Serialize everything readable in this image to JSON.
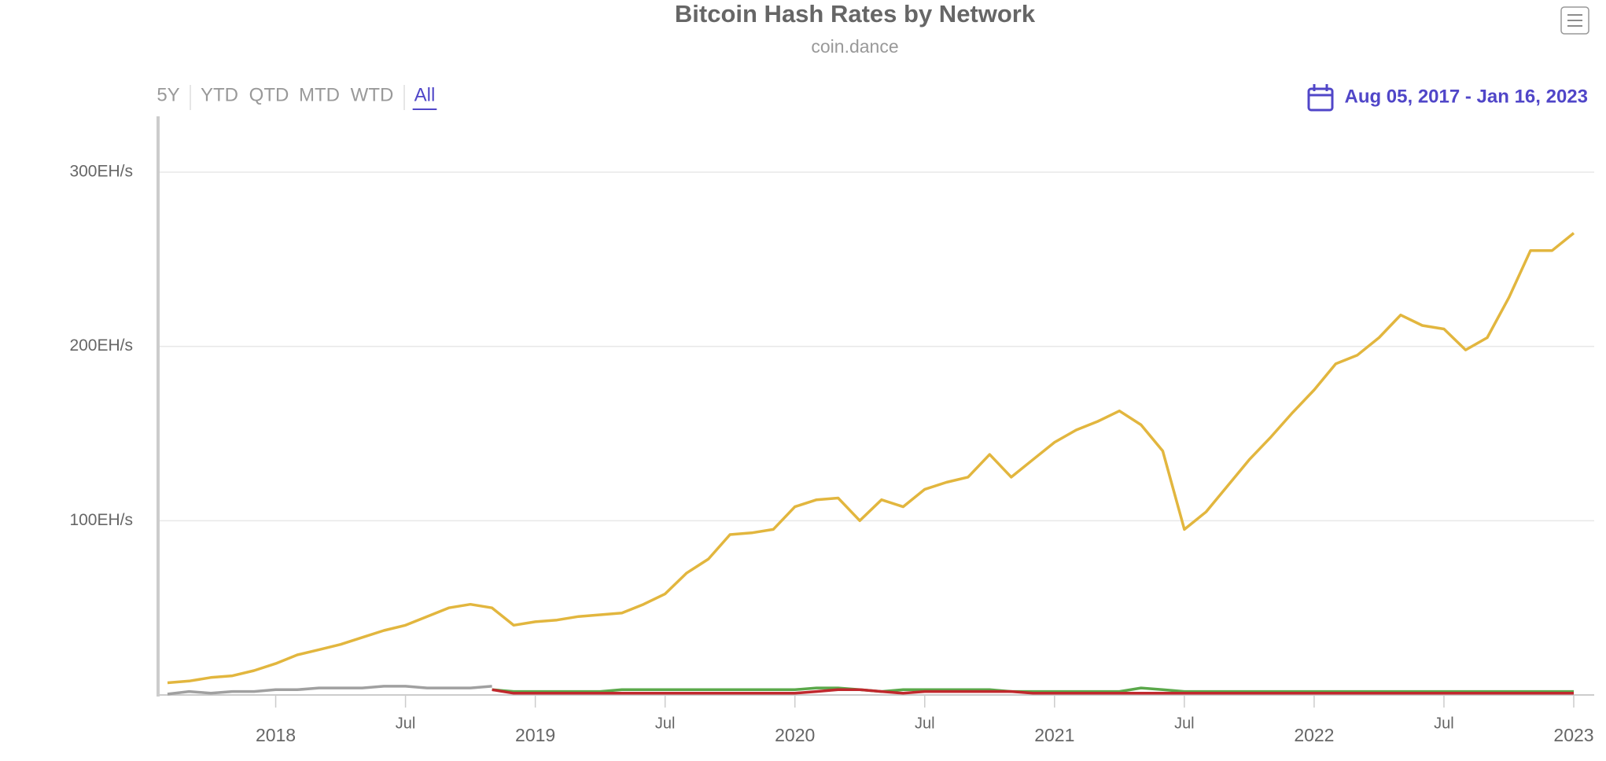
{
  "range_buttons": [
    "5Y",
    "YTD",
    "QTD",
    "MTD",
    "WTD",
    "All"
  ],
  "active_range": 5,
  "date_range": "Aug 05, 2017 - Jan 16, 2023",
  "chart_data": {
    "type": "line",
    "title": "Bitcoin Hash Rates by Network",
    "subtitle": "coin.dance",
    "x": [
      "2017-08",
      "2017-09",
      "2017-10",
      "2017-11",
      "2017-12",
      "2018-01",
      "2018-02",
      "2018-03",
      "2018-04",
      "2018-05",
      "2018-06",
      "2018-07",
      "2018-08",
      "2018-09",
      "2018-10",
      "2018-11",
      "2018-12",
      "2019-01",
      "2019-02",
      "2019-03",
      "2019-04",
      "2019-05",
      "2019-06",
      "2019-07",
      "2019-08",
      "2019-09",
      "2019-10",
      "2019-11",
      "2019-12",
      "2020-01",
      "2020-02",
      "2020-03",
      "2020-04",
      "2020-05",
      "2020-06",
      "2020-07",
      "2020-08",
      "2020-09",
      "2020-10",
      "2020-11",
      "2020-12",
      "2021-01",
      "2021-02",
      "2021-03",
      "2021-04",
      "2021-05",
      "2021-06",
      "2021-07",
      "2021-08",
      "2021-09",
      "2021-10",
      "2021-11",
      "2021-12",
      "2022-01",
      "2022-02",
      "2022-03",
      "2022-04",
      "2022-05",
      "2022-06",
      "2022-07",
      "2022-08",
      "2022-09",
      "2022-10",
      "2022-11",
      "2022-12",
      "2023-01"
    ],
    "series": [
      {
        "color": "#e2b63e",
        "values": [
          7,
          8,
          10,
          11,
          14,
          18,
          23,
          26,
          29,
          33,
          37,
          40,
          45,
          50,
          52,
          50,
          40,
          42,
          43,
          45,
          46,
          47,
          52,
          58,
          70,
          78,
          92,
          93,
          95,
          108,
          112,
          113,
          100,
          112,
          108,
          118,
          122,
          125,
          138,
          125,
          135,
          145,
          152,
          157,
          163,
          155,
          140,
          95,
          105,
          120,
          135,
          148,
          162,
          175,
          190,
          195,
          205,
          218,
          212,
          210,
          198,
          205,
          228,
          255,
          255,
          265
        ]
      },
      {
        "color": "#a0a0a0",
        "values": [
          0.5,
          2,
          1,
          2,
          2,
          3,
          3,
          4,
          4,
          4,
          5,
          5,
          4,
          4,
          4,
          5,
          null,
          null,
          null,
          null,
          null,
          null,
          null,
          null,
          null,
          null,
          null,
          null,
          null,
          null,
          null,
          null,
          null,
          null,
          null,
          null,
          null,
          null,
          null,
          null,
          null,
          null,
          null,
          null,
          null,
          null,
          null,
          null,
          null,
          null,
          null,
          null,
          null,
          null,
          null,
          null,
          null,
          null,
          null,
          null,
          null,
          null,
          null,
          null,
          null,
          null
        ]
      },
      {
        "color": "#5aa84a",
        "values": [
          null,
          null,
          null,
          null,
          null,
          null,
          null,
          null,
          null,
          null,
          null,
          null,
          null,
          null,
          null,
          3,
          2,
          2,
          2,
          2,
          2,
          3,
          3,
          3,
          3,
          3,
          3,
          3,
          3,
          3,
          4,
          4,
          3,
          2,
          3,
          3,
          3,
          3,
          3,
          2,
          2,
          2,
          2,
          2,
          2,
          4,
          3,
          2,
          2,
          2,
          2,
          2,
          2,
          2,
          2,
          2,
          2,
          2,
          2,
          2,
          2,
          2,
          2,
          2,
          2,
          2
        ]
      },
      {
        "color": "#c0282d",
        "values": [
          null,
          null,
          null,
          null,
          null,
          null,
          null,
          null,
          null,
          null,
          null,
          null,
          null,
          null,
          null,
          3,
          1,
          1,
          1,
          1,
          1,
          1,
          1,
          1,
          1,
          1,
          1,
          1,
          1,
          1,
          2,
          3,
          3,
          2,
          1,
          2,
          2,
          2,
          2,
          2,
          1,
          1,
          1,
          1,
          1,
          1,
          1,
          1,
          1,
          1,
          1,
          1,
          1,
          1,
          1,
          1,
          1,
          1,
          1,
          1,
          1,
          1,
          1,
          1,
          1,
          1
        ]
      }
    ],
    "xlim": [
      "2017-08",
      "2023-01"
    ],
    "xticks": [
      {
        "value": "2018-01",
        "label": "2018"
      },
      {
        "value": "2018-07",
        "label": "Jul"
      },
      {
        "value": "2019-01",
        "label": "2019"
      },
      {
        "value": "2019-07",
        "label": "Jul"
      },
      {
        "value": "2020-01",
        "label": "2020"
      },
      {
        "value": "2020-07",
        "label": "Jul"
      },
      {
        "value": "2021-01",
        "label": "2021"
      },
      {
        "value": "2021-07",
        "label": "Jul"
      },
      {
        "value": "2022-01",
        "label": "2022"
      },
      {
        "value": "2022-07",
        "label": "Jul"
      },
      {
        "value": "2023-01",
        "label": "2023"
      }
    ],
    "ylim": [
      0,
      332
    ],
    "yticks": [
      {
        "value": 100,
        "label": "100EH/s"
      },
      {
        "value": 200,
        "label": "200EH/s"
      },
      {
        "value": 300,
        "label": "300EH/s"
      }
    ],
    "grid": true
  }
}
